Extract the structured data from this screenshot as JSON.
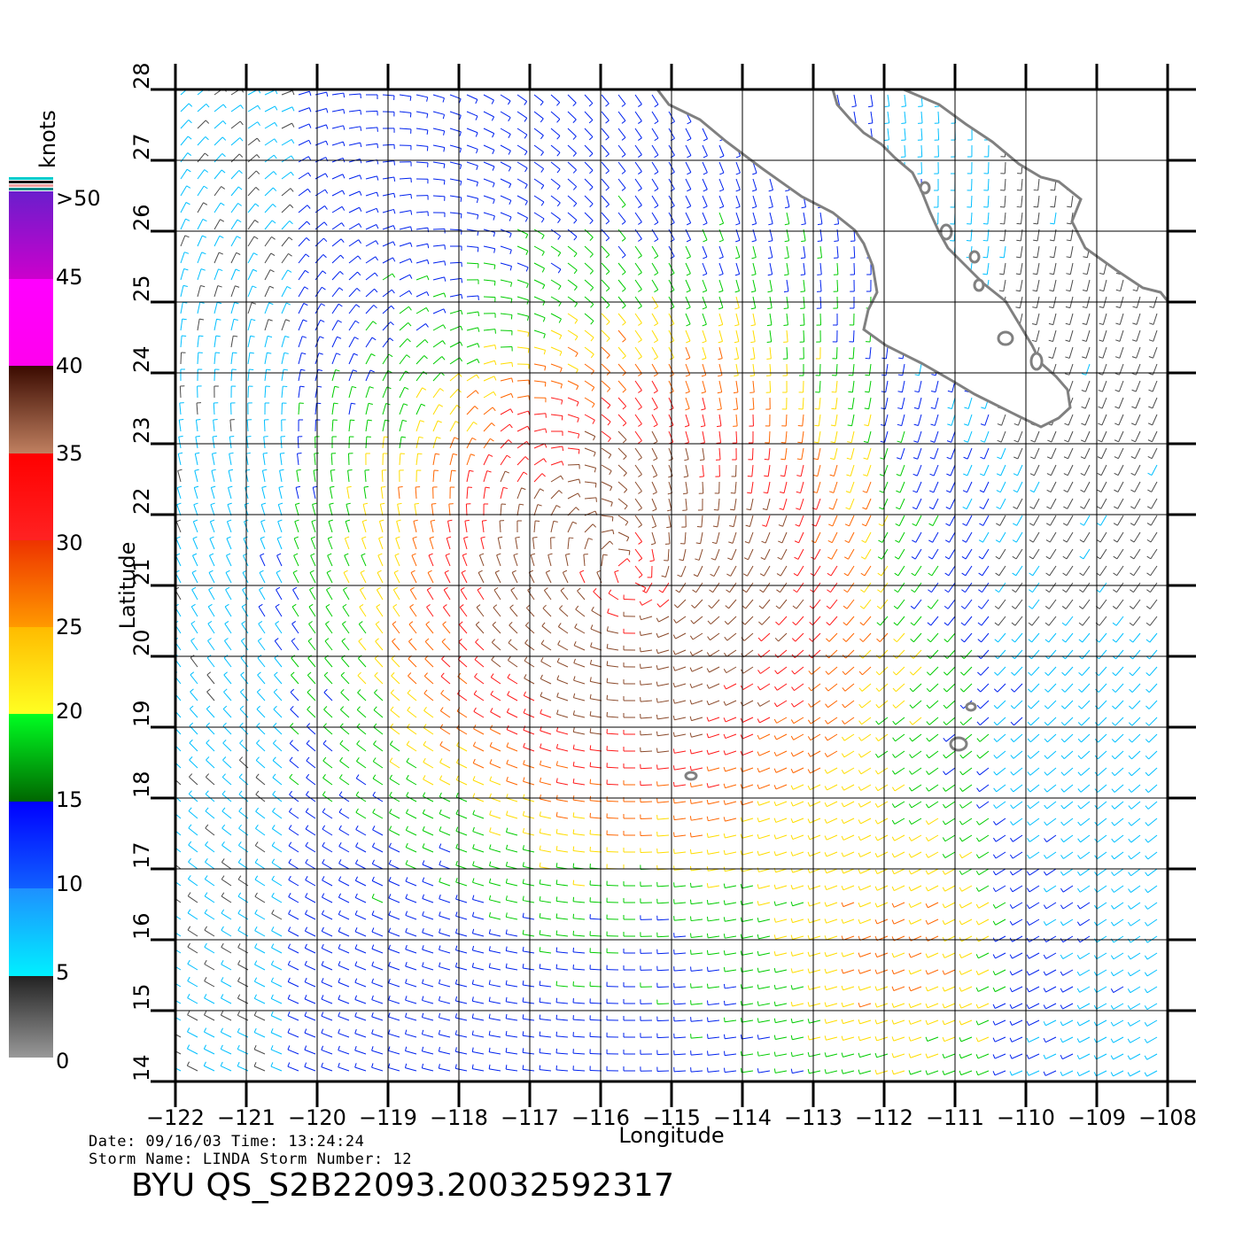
{
  "map": {
    "lon_range": [
      -122,
      -108
    ],
    "lat_range": [
      14,
      28
    ],
    "x_ticks": [
      "-122",
      "-121",
      "-120",
      "-119",
      "-118",
      "-117",
      "-116",
      "-115",
      "-114",
      "-113",
      "-112",
      "-111",
      "-110",
      "-109",
      "-108"
    ],
    "y_ticks": [
      "14",
      "15",
      "16",
      "17",
      "18",
      "19",
      "20",
      "21",
      "22",
      "23",
      "24",
      "25",
      "26",
      "27",
      "28"
    ],
    "xlabel": "Longitude",
    "ylabel": "Latitude",
    "grid": true,
    "storm_center": {
      "lon": -115.5,
      "lat": 21.0
    }
  },
  "legend": {
    "unit": "knots",
    "labels": [
      ">50",
      "45",
      "40",
      "35",
      "30",
      "25",
      "20",
      "15",
      "10",
      "5",
      "0"
    ],
    "colors": {
      "0-5": "#4a4a4a",
      "5-10": "#00bfff",
      "10-15": "#0022ee",
      "15-20": "#00cc00",
      "20-25": "#ffdd00",
      "25-30": "#ff6600",
      "30-35": "#ff1a1a",
      "35-40": "#8b4a2b",
      "40-45": "#ee00ee",
      "45-50": "#7a1fcc"
    }
  },
  "footer": {
    "line1": "Date: 09/16/03   Time: 13:24:24",
    "line2": "Storm Name: LINDA   Storm Number: 12",
    "title": "BYU  QS_S2B22093.20032592317"
  }
}
